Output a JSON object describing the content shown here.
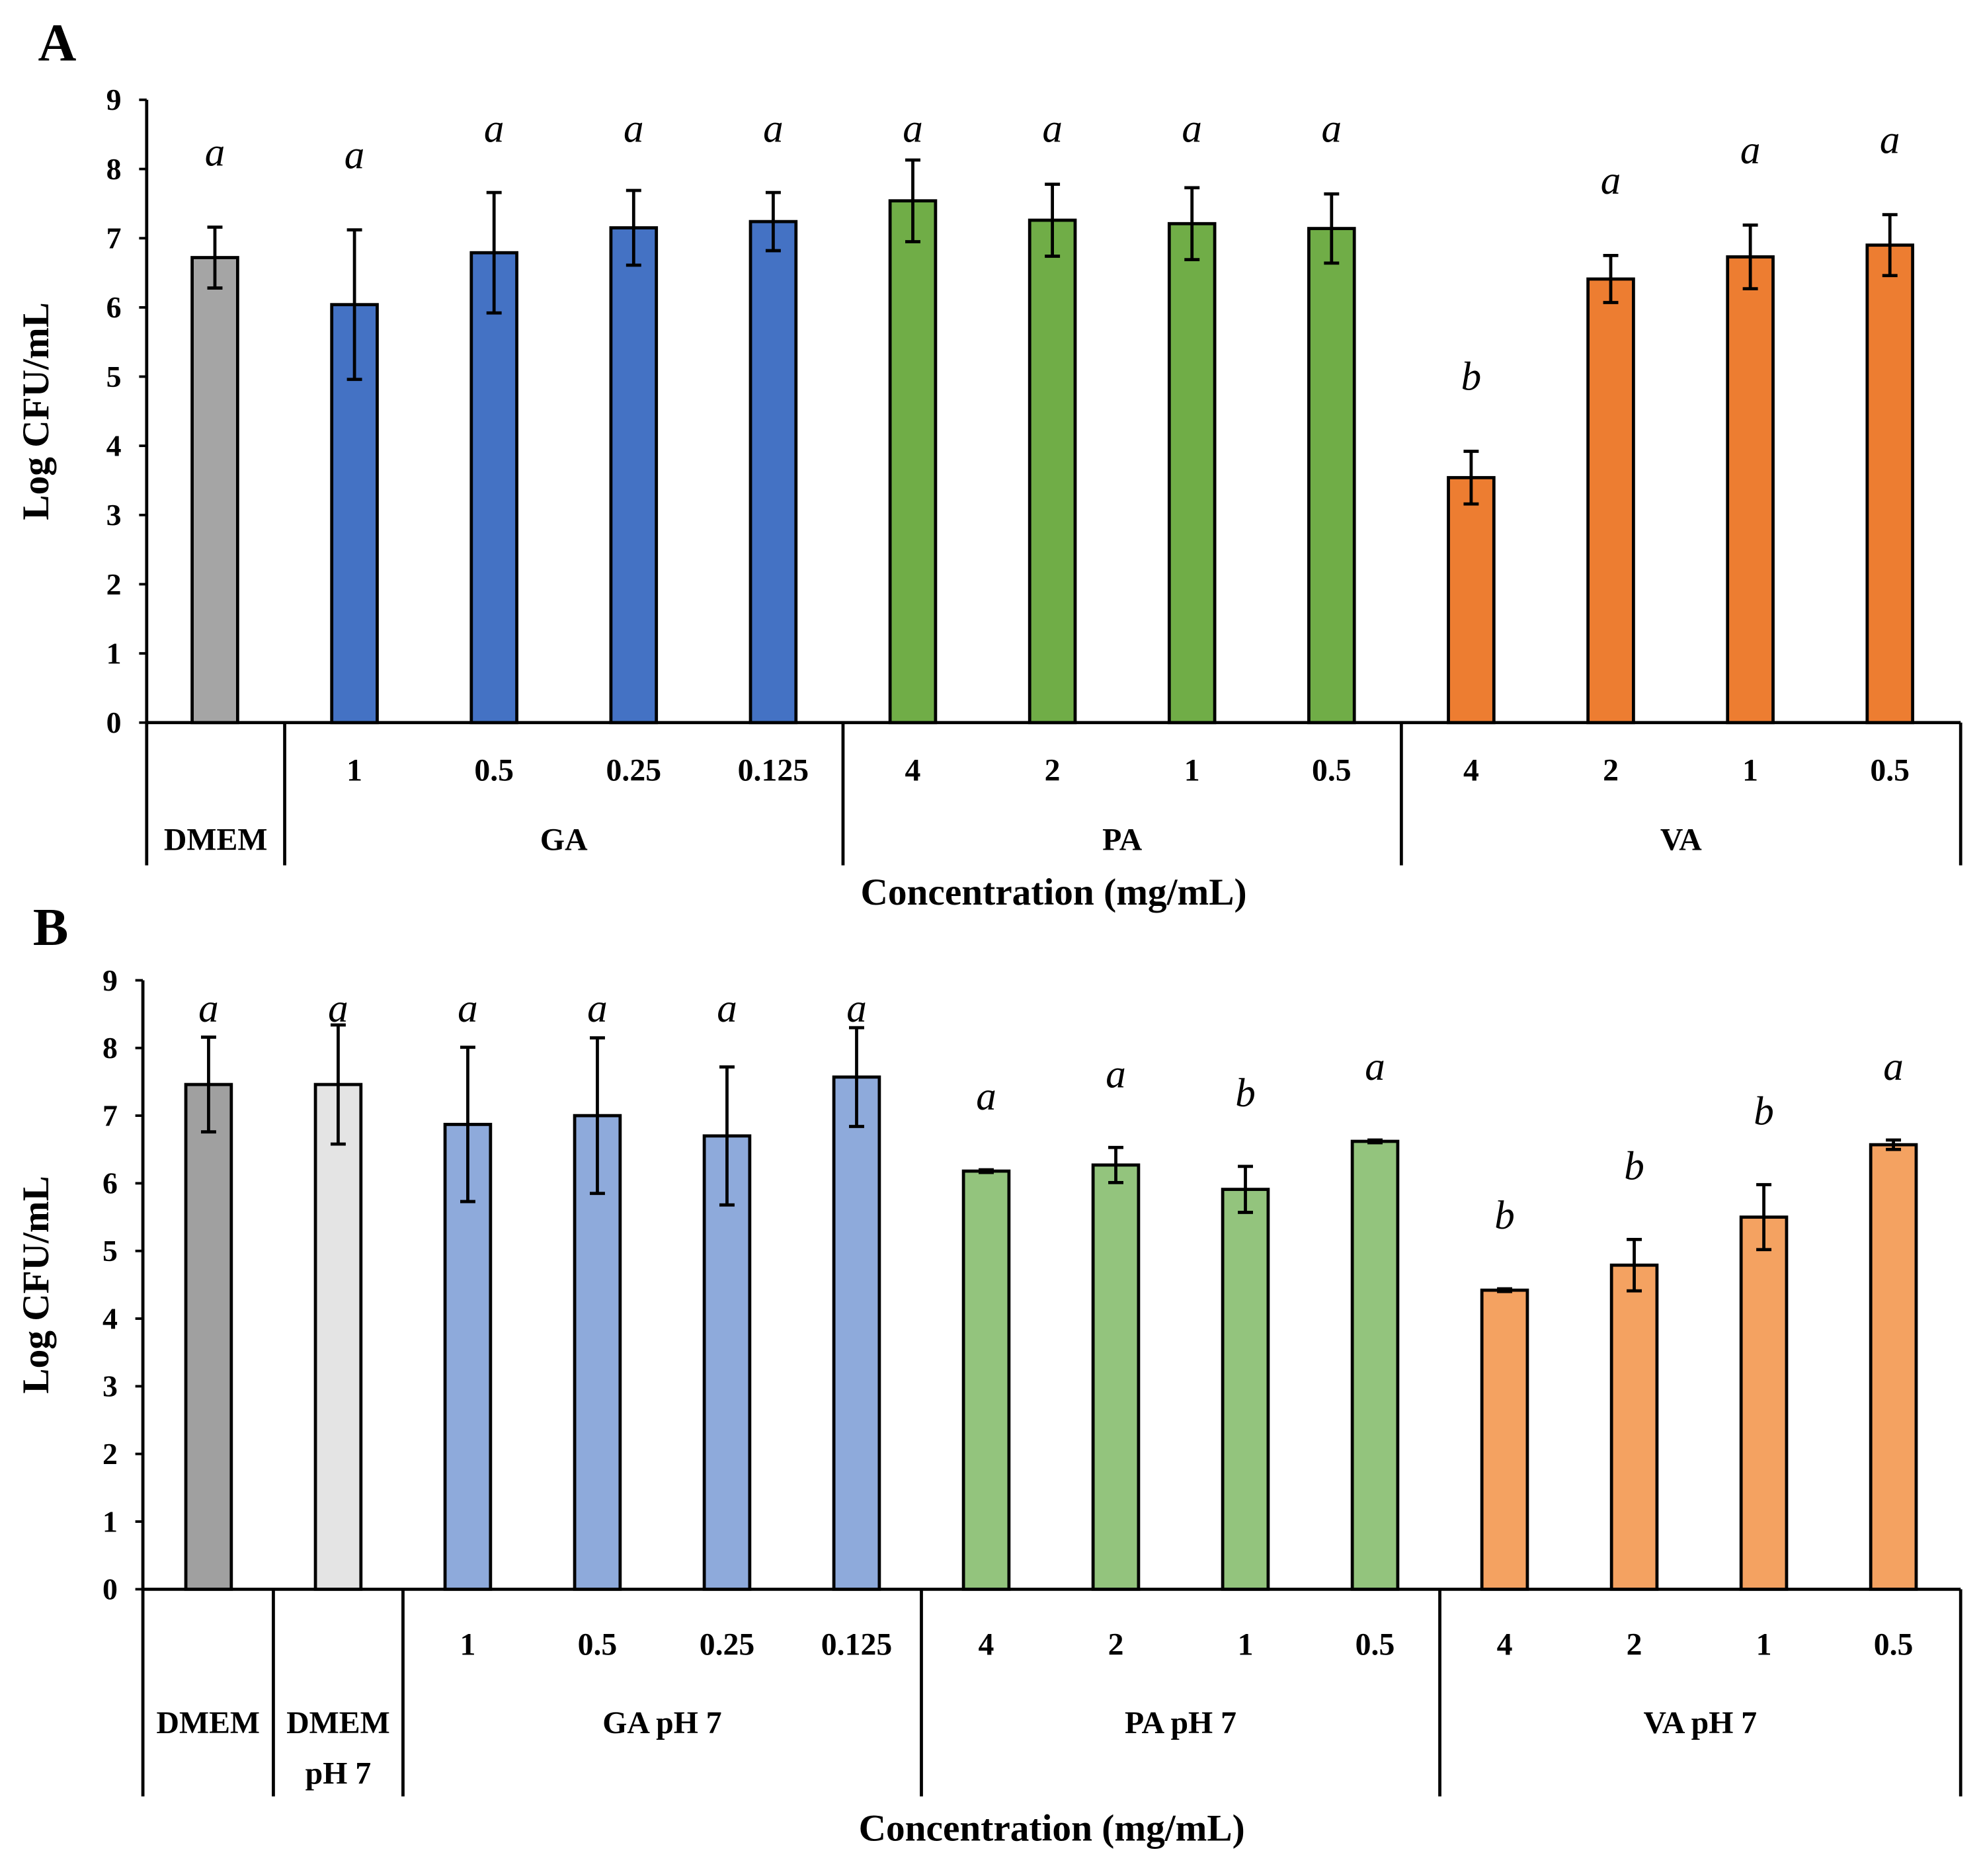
{
  "chart_data": [
    {
      "type": "bar",
      "panel": "A",
      "ylabel": "Log CFU/mL",
      "xlabel": "Concentration (mg/mL)",
      "ylim": [
        0,
        9
      ],
      "yticks": [
        "0",
        "1",
        "2",
        "3",
        "4",
        "5",
        "6",
        "7",
        "8",
        "9"
      ],
      "groups": [
        {
          "name": "DMEM",
          "categories": [
            ""
          ],
          "values": [
            6.72
          ],
          "errors": [
            0.44
          ],
          "letters": [
            "a"
          ],
          "color": "#a5a5a5"
        },
        {
          "name": "GA",
          "categories": [
            "1",
            "0.5",
            "0.25",
            "0.125"
          ],
          "values": [
            6.04,
            6.79,
            7.15,
            7.24
          ],
          "errors": [
            1.08,
            0.87,
            0.54,
            0.42
          ],
          "letters": [
            "a",
            "a",
            "a",
            "a"
          ],
          "color": "#4472c4"
        },
        {
          "name": "PA",
          "categories": [
            "4",
            "2",
            "1",
            "0.5"
          ],
          "values": [
            7.54,
            7.26,
            7.21,
            7.14
          ],
          "errors": [
            0.59,
            0.52,
            0.52,
            0.5
          ],
          "letters": [
            "a",
            "a",
            "a",
            "a"
          ],
          "color": "#70ad47"
        },
        {
          "name": "VA",
          "categories": [
            "4",
            "2",
            "1",
            "0.5"
          ],
          "values": [
            3.54,
            6.41,
            6.73,
            6.9
          ],
          "errors": [
            0.38,
            0.34,
            0.46,
            0.44
          ],
          "letters": [
            "b",
            "a",
            "a",
            "a"
          ],
          "color": "#ed7d31"
        }
      ]
    },
    {
      "type": "bar",
      "panel": "B",
      "ylabel": "Log CFU/mL",
      "xlabel": "Concentration (mg/mL)",
      "ylim": [
        0,
        9
      ],
      "yticks": [
        "0",
        "1",
        "2",
        "3",
        "4",
        "5",
        "6",
        "7",
        "8",
        "9"
      ],
      "groups": [
        {
          "name": "DMEM",
          "categories": [
            ""
          ],
          "values": [
            7.46
          ],
          "errors": [
            0.7
          ],
          "letters": [
            "a"
          ],
          "color": "#a0a0a0"
        },
        {
          "name": "DMEM pH 7",
          "categories": [
            ""
          ],
          "values": [
            7.46
          ],
          "errors": [
            0.88
          ],
          "letters": [
            "a"
          ],
          "color": "#e4e4e4"
        },
        {
          "name": "GA pH 7",
          "categories": [
            "1",
            "0.5",
            "0.25",
            "0.125"
          ],
          "values": [
            6.87,
            7.0,
            6.7,
            7.57
          ],
          "errors": [
            1.14,
            1.15,
            1.02,
            0.73
          ],
          "letters": [
            "a",
            "a",
            "a",
            "a"
          ],
          "color": "#8eaadb"
        },
        {
          "name": "PA pH 7",
          "categories": [
            "4",
            "2",
            "1",
            "0.5"
          ],
          "values": [
            6.18,
            6.27,
            5.91,
            6.62
          ],
          "errors": [
            0.02,
            0.26,
            0.34,
            0.02
          ],
          "letters": [
            "a",
            "a",
            "b",
            "a"
          ],
          "color": "#93c47d"
        },
        {
          "name": "VA pH 7",
          "categories": [
            "4",
            "2",
            "1",
            "0.5"
          ],
          "values": [
            4.42,
            4.79,
            5.5,
            6.57
          ],
          "errors": [
            0.02,
            0.38,
            0.48,
            0.07
          ],
          "letters": [
            "b",
            "b",
            "b",
            "a"
          ],
          "color": "#f4a261"
        }
      ]
    }
  ]
}
